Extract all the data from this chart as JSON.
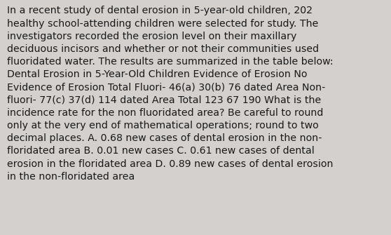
{
  "background_color": "#d3d0ce",
  "text_color": "#1a1a1a",
  "font_size": 10.2,
  "font_family": "DejaVu Sans",
  "lines": [
    "In a recent study of dental erosion in 5-year-old children, 202",
    "healthy school-attending children were selected for study. The",
    "investigators recorded the erosion level on their maxillary",
    "deciduous incisors and whether or not their communities used",
    "fluoridated water. The results are summarized in the table below:",
    "Dental Erosion in 5-Year-Old Children Evidence of Erosion No",
    "Evidence of Erosion Total Fluori- 46(a) 30(b) 76 dated Area Non-",
    "fluori- 77(c) 37(d) 114 dated Area Total 123 67 190 What is the",
    "incidence rate for the non fluoridated area? Be careful to round",
    "only at the very end of mathematical operations; round to two",
    "decimal places. A. 0.68 new cases of dental erosion in the non-",
    "floridated area B. 0.01 new cases C. 0.61 new cases of dental",
    "erosion in the floridated area D. 0.89 new cases of dental erosion",
    "in the non-floridated area"
  ]
}
